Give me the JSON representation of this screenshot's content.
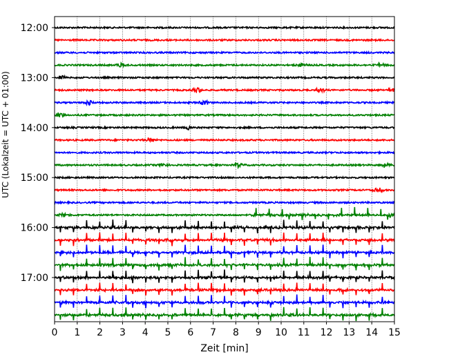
{
  "chart_data": {
    "type": "line",
    "title": "",
    "xlabel": "Zeit  [min]",
    "ylabel": "UTC (Lokalzeit = UTC + 01:00)",
    "xlim": [
      0,
      15
    ],
    "x_ticks": [
      0,
      1,
      2,
      3,
      4,
      5,
      6,
      7,
      8,
      9,
      10,
      11,
      12,
      13,
      14,
      15
    ],
    "y_tick_labels": [
      "12:00",
      "13:00",
      "14:00",
      "15:00",
      "16:00",
      "17:00"
    ],
    "vertical_grid": "dotted",
    "trace_interval_minutes": 15,
    "start_time": "12:00",
    "color_cycle": [
      "#000000",
      "#ff0000",
      "#0000ff",
      "#008000"
    ],
    "traces": [
      {
        "start": "12:00",
        "color": "#000000",
        "activity": "quiet"
      },
      {
        "start": "12:15",
        "color": "#ff0000",
        "activity": "quiet"
      },
      {
        "start": "12:30",
        "color": "#0000ff",
        "activity": "quiet"
      },
      {
        "start": "12:45",
        "color": "#008000",
        "activity": "quiet",
        "events_min": [
          2.9,
          10.9,
          14.4
        ]
      },
      {
        "start": "13:00",
        "color": "#000000",
        "activity": "quiet",
        "events_min": [
          0.3
        ]
      },
      {
        "start": "13:15",
        "color": "#ff0000",
        "activity": "quiet",
        "events_min": [
          6.3,
          11.7,
          14.9
        ]
      },
      {
        "start": "13:30",
        "color": "#0000ff",
        "activity": "event",
        "events_min": [
          1.5,
          6.6
        ]
      },
      {
        "start": "13:45",
        "color": "#008000",
        "activity": "quiet",
        "events_min": [
          0.3
        ]
      },
      {
        "start": "14:00",
        "color": "#000000",
        "activity": "quiet",
        "events_min": [
          5.9
        ]
      },
      {
        "start": "14:15",
        "color": "#ff0000",
        "activity": "quiet",
        "events_min": [
          4.2
        ]
      },
      {
        "start": "14:30",
        "color": "#0000ff",
        "activity": "quiet"
      },
      {
        "start": "14:45",
        "color": "#008000",
        "activity": "quiet",
        "events_min": [
          4.8,
          8.1,
          14.6
        ]
      },
      {
        "start": "15:00",
        "color": "#000000",
        "activity": "quiet"
      },
      {
        "start": "15:15",
        "color": "#ff0000",
        "activity": "quiet",
        "events_min": [
          14.3
        ]
      },
      {
        "start": "15:30",
        "color": "#0000ff",
        "activity": "quiet"
      },
      {
        "start": "15:45",
        "color": "#008000",
        "activity": "spikes_from",
        "spikes_from_min": 8.6,
        "events_min": [
          0.4,
          14.8
        ]
      },
      {
        "start": "16:00",
        "color": "#000000",
        "activity": "spikes"
      },
      {
        "start": "16:15",
        "color": "#ff0000",
        "activity": "spikes"
      },
      {
        "start": "16:30",
        "color": "#0000ff",
        "activity": "spikes"
      },
      {
        "start": "16:45",
        "color": "#008000",
        "activity": "spikes"
      },
      {
        "start": "17:00",
        "color": "#000000",
        "activity": "spikes"
      },
      {
        "start": "17:15",
        "color": "#ff0000",
        "activity": "spikes"
      },
      {
        "start": "17:30",
        "color": "#0000ff",
        "activity": "spikes"
      },
      {
        "start": "17:45",
        "color": "#008000",
        "activity": "spikes"
      }
    ]
  }
}
